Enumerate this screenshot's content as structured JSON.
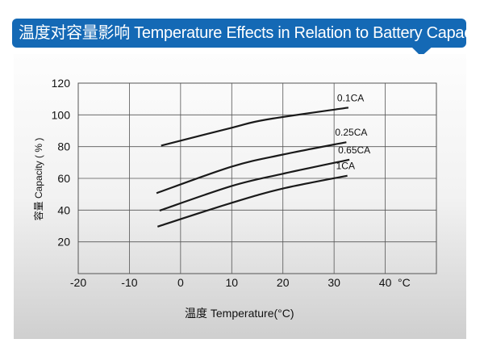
{
  "title": "温度对容量影响 Temperature Effects in Relation to Battery Capacity",
  "colors": {
    "title_bar": "#1469b5",
    "title_text": "#ffffff",
    "line": "#1a1a1a",
    "grid": "#555555"
  },
  "chart_data": {
    "type": "line",
    "title": "",
    "xlabel": "温度  Temperature(°C)",
    "ylabel": "容量 Capacity ( % )",
    "x_unit_label": "°C",
    "xlim": [
      -20,
      50
    ],
    "ylim": [
      0,
      120
    ],
    "xticks": [
      -20,
      -10,
      0,
      10,
      20,
      30,
      40
    ],
    "yticks": [
      20,
      40,
      60,
      80,
      100,
      120
    ],
    "grid": true,
    "series": [
      {
        "name": "0.1CA",
        "x": [
          -3.8,
          10,
          16.7,
          32.8
        ],
        "y": [
          80.6,
          91.9,
          97,
          104.6
        ]
      },
      {
        "name": "0.25CA",
        "x": [
          -4.7,
          10,
          20,
          32.4
        ],
        "y": [
          50.7,
          67.4,
          75,
          82.8
        ]
      },
      {
        "name": "0.65CA",
        "x": [
          -4.1,
          10,
          20,
          33
        ],
        "y": [
          39.7,
          55.2,
          62.9,
          71.8
        ]
      },
      {
        "name": "1CA",
        "x": [
          -4.5,
          10,
          20,
          32.6
        ],
        "y": [
          29.6,
          44.6,
          53.6,
          61.7
        ]
      }
    ]
  }
}
